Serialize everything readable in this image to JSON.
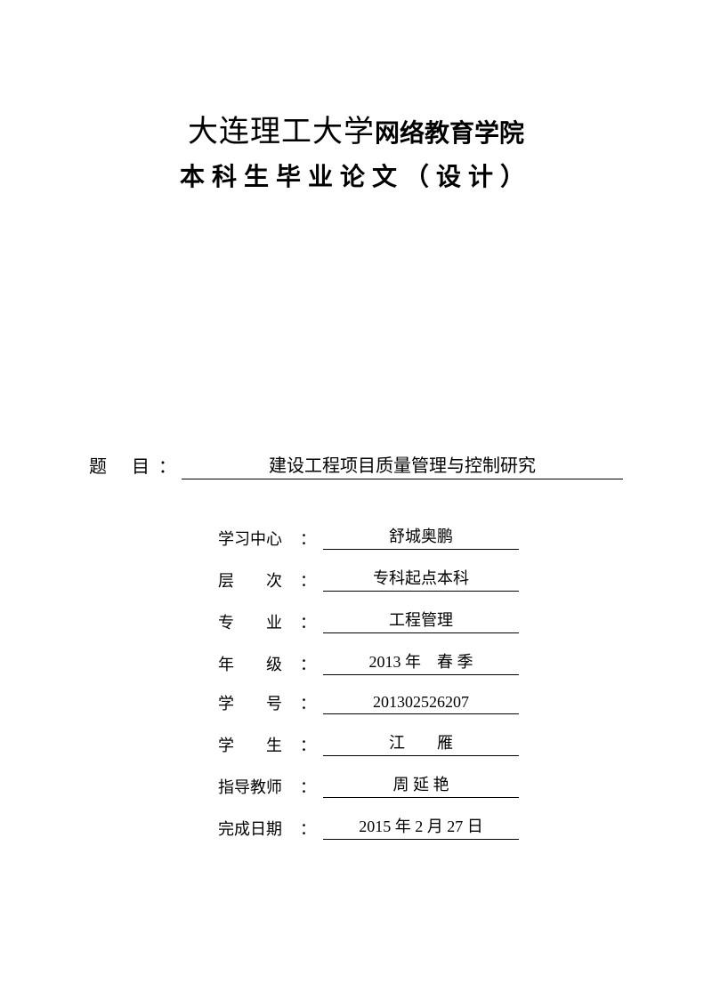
{
  "header": {
    "university_name": "大连理工大学",
    "college_name": "网络教育学院",
    "subtitle": "本科生毕业论文（设计）"
  },
  "title": {
    "label": "题目",
    "value": "建设工程项目质量管理与控制研究"
  },
  "fields": [
    {
      "label": "学习中心",
      "value": "舒城奥鹏",
      "label_class": ""
    },
    {
      "label": "层　　次",
      "value": "专科起点本科",
      "label_class": ""
    },
    {
      "label": "专　　业",
      "value": "工程管理",
      "label_class": ""
    },
    {
      "label": "年　　级",
      "value": "2013 年　春 季",
      "label_class": ""
    },
    {
      "label": "学　　号",
      "value": "201302526207",
      "label_class": ""
    },
    {
      "label": "学　　生",
      "value": "江　　雁",
      "label_class": ""
    },
    {
      "label": "指导教师",
      "value": "周 延 艳",
      "label_class": ""
    },
    {
      "label": "完成日期",
      "value": "2015 年 2 月 27 日",
      "label_class": ""
    }
  ],
  "colors": {
    "text": "#000000",
    "background": "#ffffff",
    "underline": "#000000"
  }
}
